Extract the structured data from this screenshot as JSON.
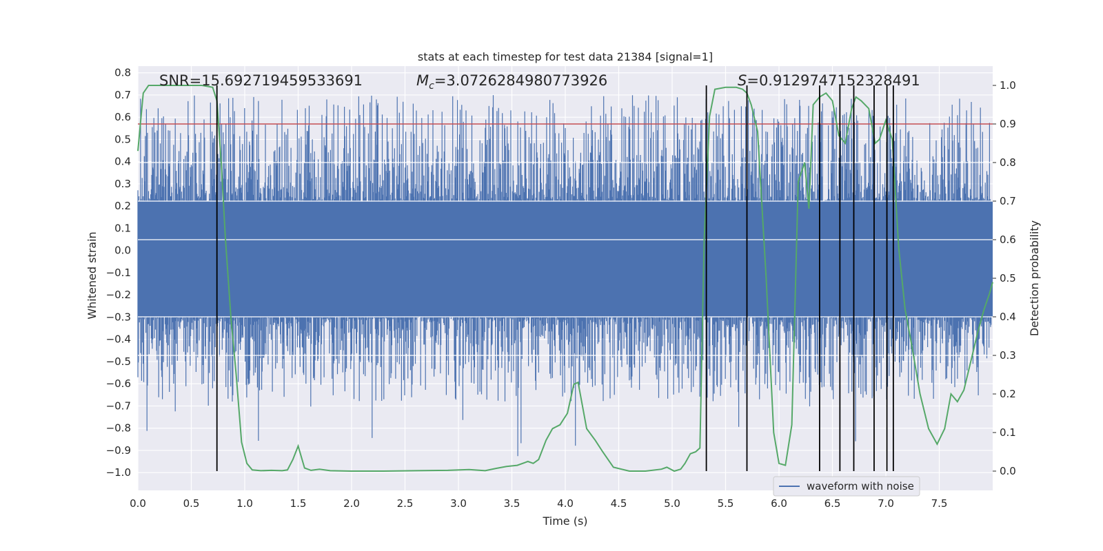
{
  "chart_data": {
    "type": "line",
    "title": "stats at each timestep for test data 21384 [signal=1]",
    "xlabel": "Time (s)",
    "ylabel_left": "Whitened strain",
    "ylabel_right": "Detection probability",
    "xlim": [
      0.0,
      8.0
    ],
    "ylim_left": [
      -1.08,
      0.83
    ],
    "ylim_right": [
      -0.05,
      1.05
    ],
    "x_ticks": [
      "0.0",
      "0.5",
      "1.0",
      "1.5",
      "2.0",
      "2.5",
      "3.0",
      "3.5",
      "4.0",
      "4.5",
      "5.0",
      "5.5",
      "6.0",
      "6.5",
      "7.0",
      "7.5"
    ],
    "x_tick_values": [
      0.0,
      0.5,
      1.0,
      1.5,
      2.0,
      2.5,
      3.0,
      3.5,
      4.0,
      4.5,
      5.0,
      5.5,
      6.0,
      6.5,
      7.0,
      7.5
    ],
    "y_left_ticks": [
      "0.8",
      "0.7",
      "0.6",
      "0.5",
      "0.4",
      "0.3",
      "0.2",
      "0.1",
      "0.0",
      "−0.1",
      "−0.2",
      "−0.3",
      "−0.4",
      "−0.5",
      "−0.6",
      "−0.7",
      "−0.8",
      "−0.9",
      "−1.0"
    ],
    "y_left_tick_values": [
      0.8,
      0.7,
      0.6,
      0.5,
      0.4,
      0.3,
      0.2,
      0.1,
      0.0,
      -0.1,
      -0.2,
      -0.3,
      -0.4,
      -0.5,
      -0.6,
      -0.7,
      -0.8,
      -0.9,
      -1.0
    ],
    "y_right_ticks": [
      "1.0",
      "0.9",
      "0.8",
      "0.7",
      "0.6",
      "0.5",
      "0.4",
      "0.3",
      "0.2",
      "0.1",
      "0.0"
    ],
    "y_right_tick_values": [
      1.0,
      0.9,
      0.8,
      0.7,
      0.6,
      0.5,
      0.4,
      0.3,
      0.2,
      0.1,
      0.0
    ],
    "annotations": {
      "snr": "SNR=15.692719459533691",
      "mc_symbol": "M",
      "mc_sub": "c",
      "mc_value": "=3.0726284980773926",
      "s_symbol": "S",
      "s_value": "=0.9129747152328491"
    },
    "legend": {
      "label": "waveform with noise",
      "position": "lower-right"
    },
    "threshold": {
      "value": 0.9,
      "axis": "right",
      "color": "#c44e52"
    },
    "detection_lines": [
      0.74,
      5.32,
      5.7,
      6.38,
      6.57,
      6.7,
      6.89,
      7.01,
      7.07
    ],
    "detection_probability": {
      "x": [
        0.0,
        0.05,
        0.1,
        0.15,
        0.2,
        0.3,
        0.4,
        0.5,
        0.6,
        0.7,
        0.74,
        0.78,
        0.82,
        0.87,
        0.92,
        0.97,
        1.02,
        1.07,
        1.15,
        1.25,
        1.35,
        1.4,
        1.45,
        1.5,
        1.56,
        1.62,
        1.7,
        1.8,
        2.0,
        2.3,
        2.6,
        2.9,
        3.1,
        3.25,
        3.35,
        3.45,
        3.55,
        3.65,
        3.7,
        3.75,
        3.82,
        3.88,
        3.95,
        4.02,
        4.08,
        4.12,
        4.2,
        4.28,
        4.35,
        4.45,
        4.6,
        4.75,
        4.9,
        4.95,
        5.02,
        5.08,
        5.12,
        5.17,
        5.22,
        5.26,
        5.3,
        5.35,
        5.4,
        5.5,
        5.6,
        5.66,
        5.7,
        5.74,
        5.8,
        5.88,
        5.95,
        6.0,
        6.06,
        6.12,
        6.18,
        6.24,
        6.28,
        6.32,
        6.38,
        6.44,
        6.5,
        6.56,
        6.62,
        6.68,
        6.72,
        6.77,
        6.84,
        6.9,
        6.94,
        7.0,
        7.06,
        7.12,
        7.18,
        7.24,
        7.32,
        7.4,
        7.48,
        7.55,
        7.61,
        7.67,
        7.73,
        7.8,
        7.86,
        7.92,
        7.97,
        8.0
      ],
      "values": [
        0.83,
        0.98,
        1.0,
        1.0,
        1.0,
        1.0,
        1.0,
        1.0,
        1.0,
        0.995,
        0.96,
        0.8,
        0.6,
        0.4,
        0.25,
        0.075,
        0.02,
        0.003,
        0.001,
        0.002,
        0.001,
        0.003,
        0.03,
        0.065,
        0.008,
        0.002,
        0.005,
        0.001,
        0.0,
        0.0,
        0.001,
        0.002,
        0.004,
        0.001,
        0.007,
        0.012,
        0.015,
        0.025,
        0.02,
        0.03,
        0.08,
        0.11,
        0.12,
        0.15,
        0.225,
        0.23,
        0.11,
        0.08,
        0.05,
        0.01,
        0.0,
        0.0,
        0.005,
        0.01,
        0.0,
        0.005,
        0.02,
        0.045,
        0.05,
        0.06,
        0.6,
        0.92,
        0.99,
        0.995,
        0.995,
        0.99,
        0.98,
        0.95,
        0.88,
        0.5,
        0.1,
        0.02,
        0.015,
        0.12,
        0.75,
        0.8,
        0.68,
        0.95,
        0.97,
        0.98,
        0.96,
        0.87,
        0.85,
        0.94,
        0.97,
        0.96,
        0.94,
        0.85,
        0.86,
        0.91,
        0.86,
        0.58,
        0.42,
        0.33,
        0.2,
        0.11,
        0.07,
        0.11,
        0.2,
        0.18,
        0.21,
        0.29,
        0.36,
        0.42,
        0.46,
        0.49
      ]
    },
    "series": [
      {
        "name": "waveform with noise",
        "axis": "left",
        "color": "#4c72b0",
        "values": "band of whitened strain noise (samples estimated)"
      },
      {
        "name": "detection probability",
        "axis": "right",
        "color": "#55a868"
      }
    ],
    "colors": {
      "axes_bg": "#eaeaf2",
      "grid": "#ffffff",
      "strain": "#4c72b0",
      "probability": "#55a868",
      "threshold": "#c44e52",
      "markers": "#000000"
    }
  }
}
